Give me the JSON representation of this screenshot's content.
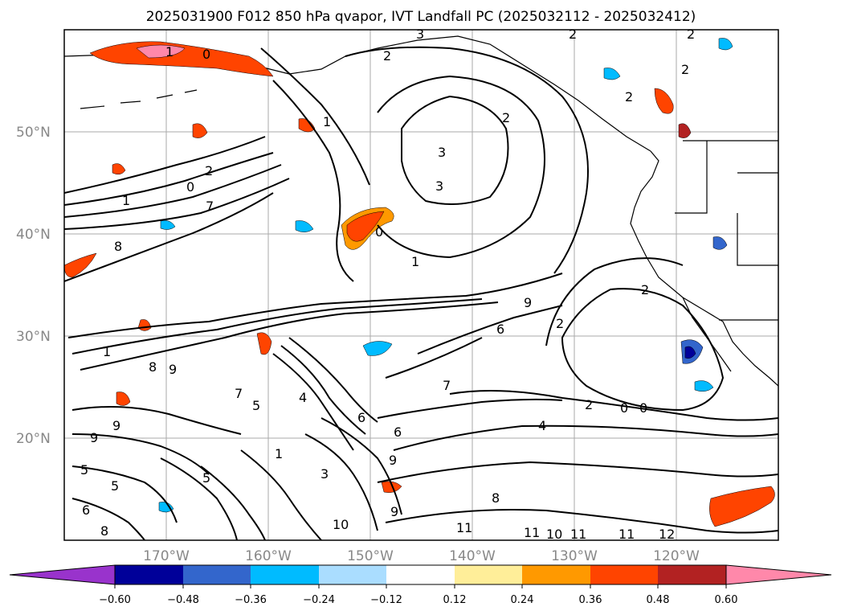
{
  "title": "2025031900 F012 850 hPa qvapor, IVT Landfall PC (2025032112 - 2025032412)",
  "map": {
    "lat_labels": [
      "50°N",
      "40°N",
      "30°N",
      "20°N"
    ],
    "lon_labels": [
      "170°W",
      "160°W",
      "150°W",
      "140°W",
      "130°W",
      "120°W"
    ],
    "extent": {
      "lon": [
        -180,
        -110
      ],
      "lat": [
        10,
        60
      ]
    },
    "gridlines": true,
    "gridline_color": "#aaaaaa"
  },
  "colorbar": {
    "extend": "both",
    "ticks": [
      "−0.60",
      "−0.48",
      "−0.36",
      "−0.24",
      "−0.12",
      "0.12",
      "0.24",
      "0.36",
      "0.48",
      "0.60"
    ],
    "colors": [
      "#9933cc",
      "#000099",
      "#3366cc",
      "#00bbff",
      "#aaddff",
      "#ffffff",
      "#ffee99",
      "#ff9900",
      "#ff4400",
      "#b22222",
      "#ff88aa"
    ]
  },
  "contour_labels": [
    "2",
    "1",
    "0",
    "3",
    "3",
    "2",
    "2",
    "7",
    "1",
    "0",
    "8",
    "1",
    "0",
    "7",
    "6",
    "1",
    "1",
    "9",
    "9",
    "8",
    "9",
    "5",
    "5",
    "6",
    "9",
    "8",
    "7",
    "5",
    "4",
    "6",
    "1",
    "3",
    "9",
    "10",
    "11",
    "11",
    "10",
    "11",
    "11",
    "12",
    "9",
    "5",
    "6",
    "2",
    "8",
    "4",
    "2",
    "0",
    "0",
    "2",
    "3",
    "2",
    "2",
    "2",
    "2"
  ]
}
